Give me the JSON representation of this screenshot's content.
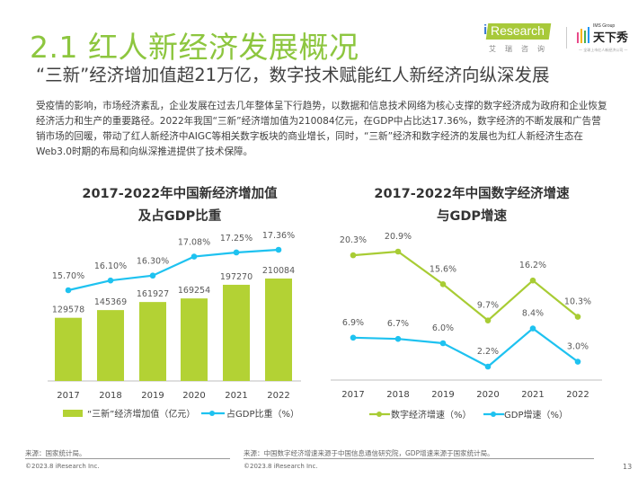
{
  "header": {
    "title": "2.1 红人新经济发展概况",
    "subtitle": "“三新”经济增加值超21万亿，数字技术赋能红人新经济向纵深发展",
    "logos": {
      "iresearch_en": "Research",
      "iresearch_i": "i",
      "iresearch_cn": "艾瑞咨询",
      "partner_group": "IMS Group",
      "partner_cn": "天下秀",
      "partner_sub": "— 全球上市红人新经济公司 —"
    }
  },
  "body_text": "受疫情的影响，市场经济紊乱，企业发展在过去几年整体呈下行趋势，以数据和信息技术网络为核心支撑的数字经济成为政府和企业恢复经济活力和生产的重要路径。2022年我国“三新”经济增加值为210084亿元，在GDP中占比达17.36%，数字经济的不断发展和广告营销市场的回暖，带动了红人新经济中AIGC等相关数字板块的商业增长，同时，“三新”经济和数字经济的发展也为红人新经济生态在Web3.0时期的布局和向纵深推进提供了技术保障。",
  "colors": {
    "accent_green": "#8dc63f",
    "bar_green": "#b3d234",
    "line_blue": "#1ec2f0",
    "line_green": "#a8cc34"
  },
  "chart_data": [
    {
      "type": "bar",
      "title_line1": "2017-2022年中国新经济增加值",
      "title_line2": "及占GDP比重",
      "categories": [
        "2017",
        "2018",
        "2019",
        "2020",
        "2021",
        "2022"
      ],
      "series": [
        {
          "name": "“三新”经济增加值（亿元）",
          "kind": "bar",
          "values": [
            129578,
            145369,
            161927,
            169254,
            197270,
            210084
          ]
        },
        {
          "name": "占GDP比重（%）",
          "kind": "line",
          "values": [
            15.7,
            16.1,
            16.3,
            17.08,
            17.25,
            17.36
          ],
          "labels": [
            "15.70%",
            "16.10%",
            "16.30%",
            "17.08%",
            "17.25%",
            "17.36%"
          ]
        }
      ],
      "legend_position": "bottom",
      "grid": false,
      "source": "来源：国家统计局。",
      "copyright": "©2023.8 iResearch Inc."
    },
    {
      "type": "line",
      "title_line1": "2017-2022年中国数字经济增速",
      "title_line2": "与GDP增速",
      "categories": [
        "2017",
        "2018",
        "2019",
        "2020",
        "2021",
        "2022"
      ],
      "series": [
        {
          "name": "数字经济增速（%）",
          "values": [
            20.3,
            20.9,
            15.6,
            9.7,
            16.2,
            10.3
          ],
          "labels": [
            "20.3%",
            "20.9%",
            "15.6%",
            "9.7%",
            "16.2%",
            "10.3%"
          ]
        },
        {
          "name": "GDP增速（%）",
          "values": [
            6.9,
            6.7,
            6.0,
            2.2,
            8.4,
            3.0
          ],
          "labels": [
            "6.9%",
            "6.7%",
            "6.0%",
            "2.2%",
            "8.4%",
            "3.0%"
          ]
        }
      ],
      "legend_position": "bottom",
      "grid": false,
      "source": "来源：中国数字经济增速来源于中国信息通信研究院，GDP增速来源于国家统计局。",
      "copyright": "©2023.8 iResearch Inc."
    }
  ],
  "footer": {
    "page_number": "13"
  }
}
